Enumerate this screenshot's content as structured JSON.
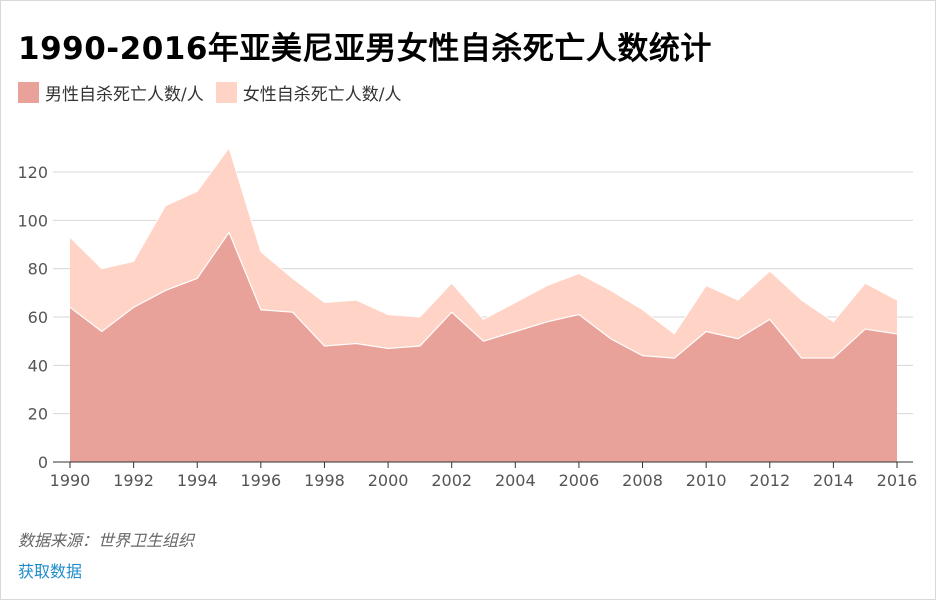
{
  "title": "1990-2016年亚美尼亚男女性自杀死亡人数统计",
  "source": "数据来源：世界卫生组织",
  "data_link": "获取数据",
  "colors": {
    "male": "#e8a29a",
    "female": "#ffd3c6",
    "grid": "#d7d7d7",
    "axis": "#333333",
    "link": "#1f8ccb"
  },
  "chart_data": {
    "type": "area",
    "stacked": true,
    "x": [
      1990,
      1991,
      1992,
      1993,
      1994,
      1995,
      1996,
      1997,
      1998,
      1999,
      2000,
      2001,
      2002,
      2003,
      2004,
      2005,
      2006,
      2007,
      2008,
      2009,
      2010,
      2011,
      2012,
      2013,
      2014,
      2015,
      2016
    ],
    "series": [
      {
        "name": "男性自杀死亡人数/人",
        "color": "#e8a29a",
        "values": [
          64,
          54,
          64,
          71,
          76,
          95,
          63,
          62,
          48,
          49,
          47,
          48,
          62,
          50,
          54,
          58,
          61,
          51,
          44,
          43,
          54,
          51,
          59,
          43,
          43,
          55,
          53
        ]
      },
      {
        "name": "女性自杀死亡人数/人",
        "color": "#ffd3c6",
        "values": [
          29,
          26,
          19,
          35,
          36,
          35,
          24,
          14,
          18,
          18,
          14,
          12,
          12,
          9,
          12,
          15,
          17,
          20,
          19,
          10,
          19,
          16,
          20,
          24,
          15,
          19,
          14
        ]
      }
    ],
    "x_ticks": [
      1990,
      1992,
      1994,
      1996,
      1998,
      2000,
      2002,
      2004,
      2006,
      2008,
      2010,
      2012,
      2014,
      2016
    ],
    "y_ticks": [
      0,
      20,
      40,
      60,
      80,
      100,
      120
    ],
    "xlim": [
      1990,
      2016
    ],
    "ylim": [
      0,
      120
    ],
    "grid": true,
    "legend_position": "top-left"
  }
}
